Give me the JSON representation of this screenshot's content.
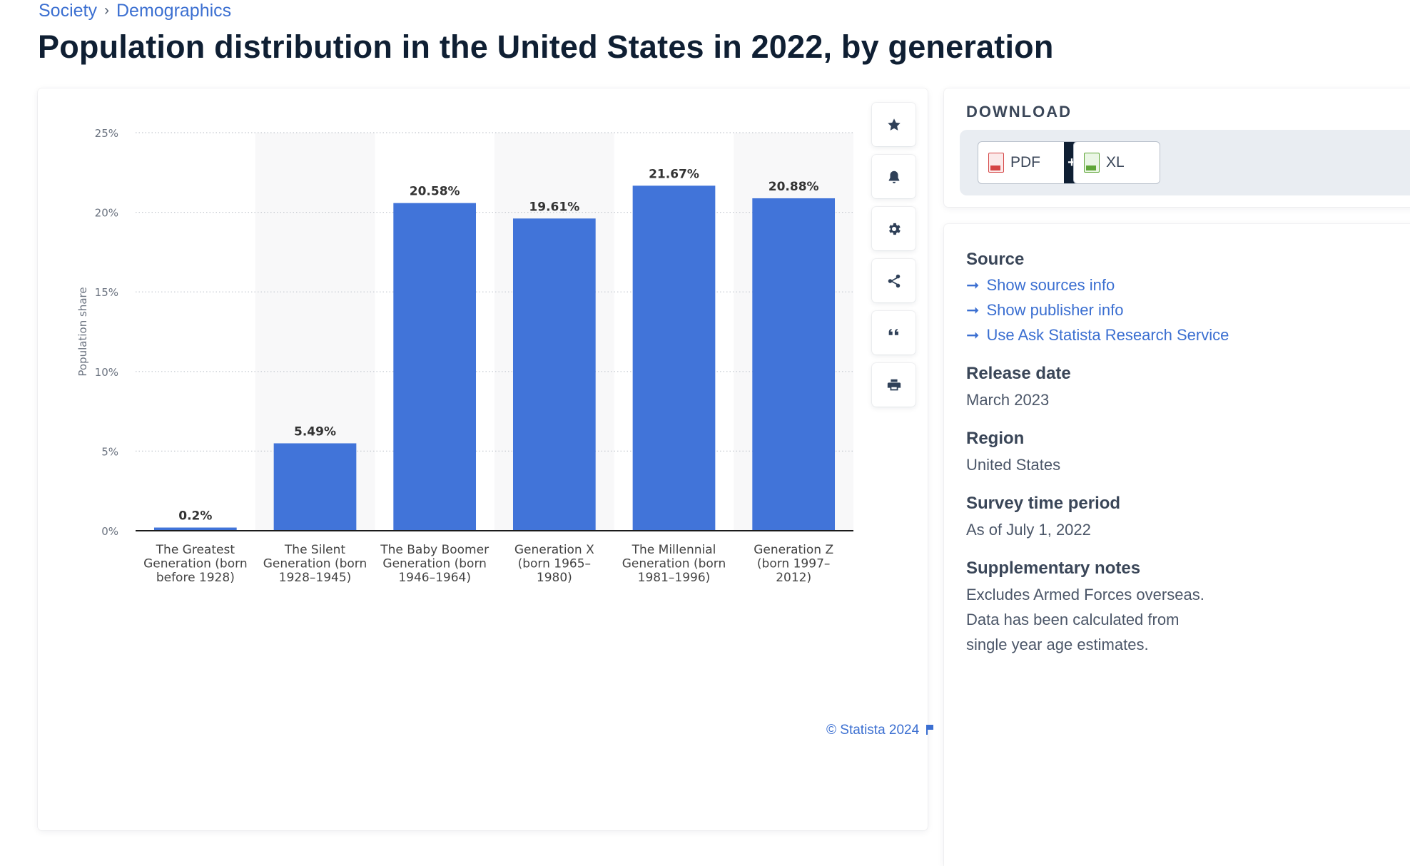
{
  "breadcrumb": {
    "items": [
      "Society",
      "Demographics"
    ],
    "separator": "›"
  },
  "title": "Population distribution in the United States in 2022, by generation",
  "chart_data": {
    "type": "bar",
    "title": "",
    "xlabel": "",
    "ylabel": "Population share",
    "ylim": [
      0,
      25
    ],
    "yticks": [
      0,
      5,
      10,
      15,
      20,
      25
    ],
    "ytick_labels": [
      "0%",
      "5%",
      "10%",
      "15%",
      "20%",
      "25%"
    ],
    "categories": [
      [
        "The Greatest",
        "Generation (born",
        "before 1928)"
      ],
      [
        "The Silent",
        "Generation (born",
        "1928–1945)"
      ],
      [
        "The Baby Boomer",
        "Generation (born",
        "1946–1964)"
      ],
      [
        "Generation X",
        "(born 1965–",
        "1980)"
      ],
      [
        "The Millennial",
        "Generation (born",
        "1981–1996)"
      ],
      [
        "Generation Z",
        "(born 1997–",
        "2012)"
      ]
    ],
    "values": [
      0.2,
      5.49,
      20.58,
      19.61,
      21.67,
      20.88
    ],
    "value_labels": [
      "0.2%",
      "5.49%",
      "20.58%",
      "19.61%",
      "21.67%",
      "20.88%"
    ],
    "grid": "horizontal dotted",
    "bar_color": "#4174d9",
    "alt_band_color": "#f8f8f9"
  },
  "credit": "© Statista 2024",
  "toolbar": {
    "buttons": [
      {
        "name": "favorite",
        "icon": "star-icon"
      },
      {
        "name": "notify",
        "icon": "bell-icon"
      },
      {
        "name": "settings",
        "icon": "gear-icon"
      },
      {
        "name": "share",
        "icon": "share-icon"
      },
      {
        "name": "cite",
        "icon": "quote-icon"
      },
      {
        "name": "print",
        "icon": "printer-icon"
      }
    ]
  },
  "download": {
    "title": "DOWNLOAD",
    "pdf_label": "PDF",
    "pdf_plus": "+",
    "xls_label": "XL"
  },
  "info": {
    "source_label": "Source",
    "source_links": [
      "Show sources info",
      "Show publisher info",
      "Use Ask Statista Research Service"
    ],
    "release_label": "Release date",
    "release_value": "March 2023",
    "region_label": "Region",
    "region_value": "United States",
    "survey_label": "Survey time period",
    "survey_value": "As of July 1, 2022",
    "supp_label": "Supplementary notes",
    "supp_lines": [
      "Excludes Armed Forces overseas.",
      "Data has been calculated from",
      "single year age estimates."
    ]
  }
}
